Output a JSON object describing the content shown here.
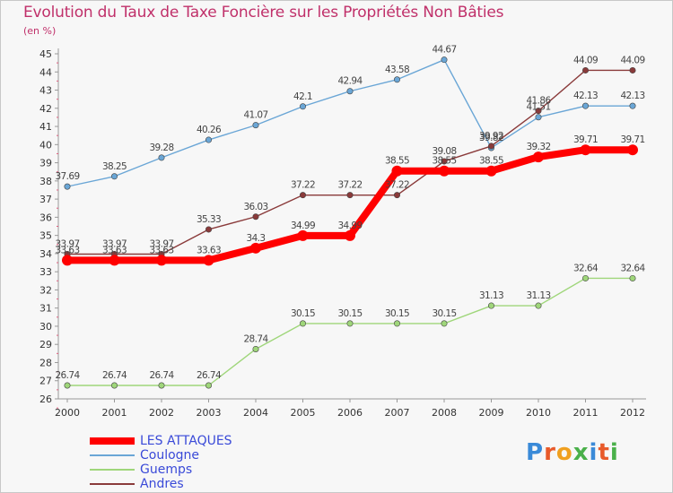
{
  "header": {
    "title": "Evolution du Taux de Taxe Foncière sur les Propriétés Non Bâties",
    "subtitle": "(en %)"
  },
  "logo": {
    "text": "Proxiti"
  },
  "chart_data": {
    "type": "line",
    "title": "Evolution du Taux de Taxe Foncière sur les Propriétés Non Bâties",
    "ylabel": "(en %)",
    "xlabel": "",
    "ylim": [
      26,
      45
    ],
    "yticks": [
      26,
      27,
      28,
      29,
      30,
      31,
      32,
      33,
      34,
      35,
      36,
      37,
      38,
      39,
      40,
      41,
      42,
      43,
      44,
      45
    ],
    "x": [
      "2000",
      "2001",
      "2002",
      "2003",
      "2004",
      "2005",
      "2006",
      "2007",
      "2008",
      "2009",
      "2010",
      "2011",
      "2012"
    ],
    "grid": false,
    "legend_position": "bottom-left",
    "series": [
      {
        "name": "LES ATTAQUES",
        "color": "#ff0000",
        "values": [
          33.63,
          33.63,
          33.63,
          33.63,
          34.3,
          34.99,
          34.99,
          38.55,
          38.55,
          38.55,
          39.32,
          39.71,
          39.71
        ]
      },
      {
        "name": "Coulogne",
        "color": "#6aa6d6",
        "values": [
          37.69,
          38.25,
          39.28,
          40.26,
          41.07,
          42.1,
          42.94,
          43.58,
          44.67,
          39.82,
          41.51,
          42.13,
          42.13
        ]
      },
      {
        "name": "Guemps",
        "color": "#9fd67a",
        "values": [
          26.74,
          26.74,
          26.74,
          26.74,
          28.74,
          30.15,
          30.15,
          30.15,
          30.15,
          31.13,
          31.13,
          32.64,
          32.64
        ]
      },
      {
        "name": "Andres",
        "color": "#8a3a3a",
        "values": [
          33.97,
          33.97,
          33.97,
          35.33,
          36.03,
          37.22,
          37.22,
          37.22,
          39.08,
          39.92,
          41.86,
          44.09,
          44.09
        ]
      }
    ]
  }
}
